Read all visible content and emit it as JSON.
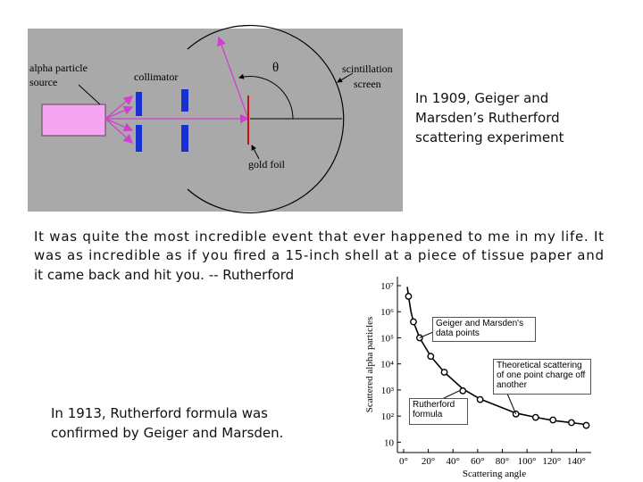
{
  "diagram": {
    "labels": [
      "alpha particle",
      "source",
      "collimator",
      "θ",
      "scintillation",
      "screen",
      "gold foil"
    ]
  },
  "caption_1909": [
    "In 1909, Geiger and",
    "Marsden’s Rutherford",
    "scattering experiment"
  ],
  "quote": [
    "It was quite the most incredible event that ever happened to me in my life. It",
    "was as incredible as if you fired a 15-inch shell at a piece of tissue paper and",
    "it came back and hit you. -- Rutherford"
  ],
  "caption_1913": [
    "In 1913, Rutherford formula was",
    "confirmed by Geiger and Marsden."
  ],
  "chart_data": {
    "type": "scatter",
    "x_label": "Scattering angle",
    "y_label": "Scattered alpha particles",
    "log_y": true,
    "xlim": [
      -5,
      152
    ],
    "ylim": [
      4,
      22000000
    ],
    "xticks": [
      {
        "value": 0,
        "label": "0°"
      },
      {
        "value": 20,
        "label": "20°"
      },
      {
        "value": 40,
        "label": "40°"
      },
      {
        "value": 60,
        "label": "60°"
      },
      {
        "value": 80,
        "label": "80°"
      },
      {
        "value": 100,
        "label": "100°"
      },
      {
        "value": 120,
        "label": "120°"
      },
      {
        "value": 140,
        "label": "140°"
      }
    ],
    "yticks": [
      {
        "value": 10,
        "label": "10"
      },
      {
        "value": 100,
        "label": "10²"
      },
      {
        "value": 1000,
        "label": "10³"
      },
      {
        "value": 10000,
        "label": "10⁴"
      },
      {
        "value": 100000,
        "label": "10⁵"
      },
      {
        "value": 1000000,
        "label": "10⁶"
      },
      {
        "value": 10000000,
        "label": "10⁷"
      }
    ],
    "series": [
      {
        "name": "Geiger and Marsden's data points",
        "color": "#000000",
        "marker": "circle",
        "x": [
          4,
          8,
          13,
          22,
          33,
          48,
          62,
          91,
          107,
          121,
          136,
          148
        ],
        "values": [
          3900000,
          410000,
          100000,
          19500,
          4800,
          930,
          430,
          120,
          89,
          71,
          56,
          44
        ]
      },
      {
        "name": "Theoretical scattering of one point charge off another",
        "color": "#000000",
        "marker": "line",
        "x": [
          3,
          4,
          6,
          8,
          13,
          22,
          33,
          48,
          62,
          91,
          107,
          121,
          136,
          150
        ],
        "values": [
          9000000,
          3900000,
          1000000,
          410000,
          100000,
          19500,
          4800,
          1100,
          450,
          130,
          90,
          68,
          56,
          46
        ]
      }
    ],
    "annotations": [
      "Rutherford formula"
    ]
  }
}
